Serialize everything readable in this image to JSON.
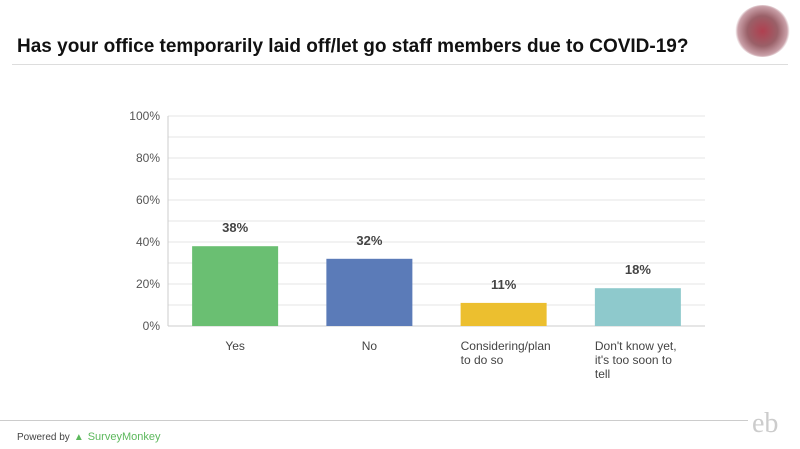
{
  "header": {
    "title": "Has your office temporarily laid off/let go staff members due to COVID-19?"
  },
  "footer": {
    "powered_by": "Powered by",
    "brand": "SurveyMonkey",
    "logo": "eb"
  },
  "chart_data": {
    "type": "bar",
    "title": "Has your office temporarily laid off/let go staff members due to COVID-19?",
    "categories": [
      [
        "Yes"
      ],
      [
        "No"
      ],
      [
        "Considering/plan",
        "to do so"
      ],
      [
        "Don't know yet,",
        "it's too soon to",
        "tell"
      ]
    ],
    "values": [
      38,
      32,
      11,
      18
    ],
    "labels": [
      "38%",
      "32%",
      "11%",
      "18%"
    ],
    "colors": [
      "#6abf72",
      "#5b7bb8",
      "#ecbf2f",
      "#8ec9cc"
    ],
    "yticks": [
      "0%",
      "20%",
      "40%",
      "60%",
      "80%",
      "100%"
    ],
    "ylim": [
      0,
      100
    ],
    "grid": true
  }
}
